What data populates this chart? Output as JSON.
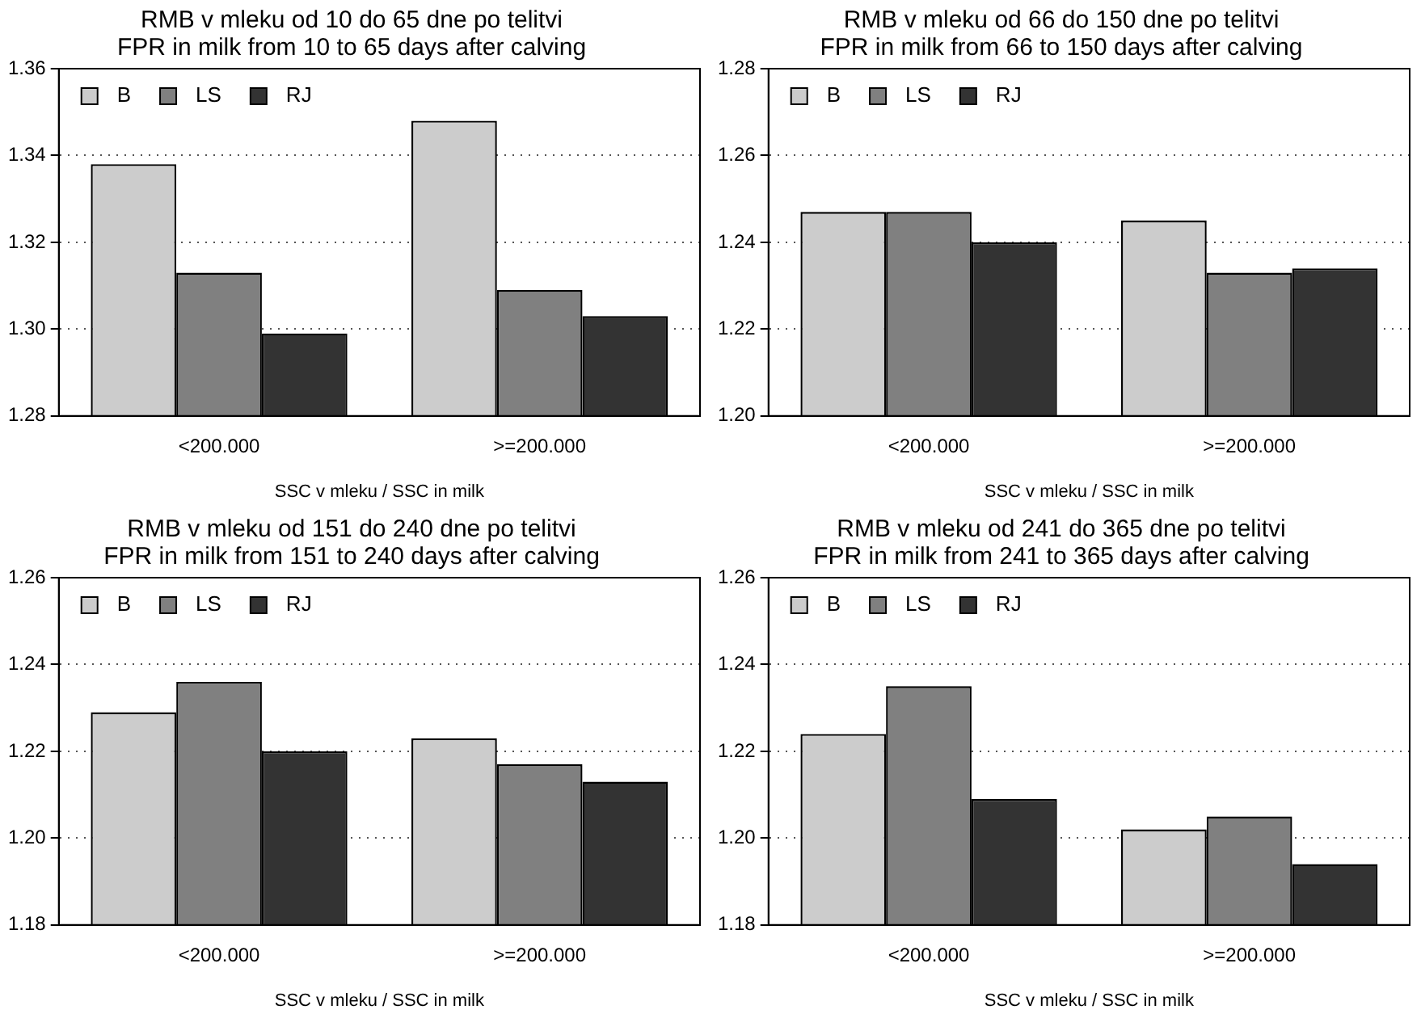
{
  "chart_data": [
    {
      "type": "bar",
      "title": "RMB v mleku od 10 do 65 dne po telitvi",
      "subtitle": "FPR in milk from 10 to 65 days after calving",
      "xlabel": "SSC v mleku / SSC in milk",
      "categories": [
        "<200.000",
        ">=200.000"
      ],
      "series": [
        {
          "name": "B",
          "color": "#cccccc",
          "values": [
            1.338,
            1.348
          ]
        },
        {
          "name": "LS",
          "color": "#808080",
          "values": [
            1.313,
            1.309
          ]
        },
        {
          "name": "RJ",
          "color": "#333333",
          "values": [
            1.299,
            1.303
          ]
        }
      ],
      "ylim": [
        1.28,
        1.36
      ],
      "yticks": [
        {
          "value": 1.28,
          "label": "1.28"
        },
        {
          "value": 1.3,
          "label": "1.30"
        },
        {
          "value": 1.32,
          "label": "1.32"
        },
        {
          "value": 1.34,
          "label": "1.34"
        },
        {
          "value": 1.36,
          "label": "1.36"
        }
      ],
      "grid": "y",
      "legend": "top left"
    },
    {
      "type": "bar",
      "title": "RMB v mleku od 66 do 150 dne po telitvi",
      "subtitle": "FPR in milk from 66 to 150 days after calving",
      "xlabel": "SSC v mleku / SSC in milk",
      "categories": [
        "<200.000",
        ">=200.000"
      ],
      "series": [
        {
          "name": "B",
          "color": "#cccccc",
          "values": [
            1.247,
            1.245
          ]
        },
        {
          "name": "LS",
          "color": "#808080",
          "values": [
            1.247,
            1.233
          ]
        },
        {
          "name": "RJ",
          "color": "#333333",
          "values": [
            1.24,
            1.234
          ]
        }
      ],
      "ylim": [
        1.2,
        1.28
      ],
      "yticks": [
        {
          "value": 1.2,
          "label": "1.20"
        },
        {
          "value": 1.22,
          "label": "1.22"
        },
        {
          "value": 1.24,
          "label": "1.24"
        },
        {
          "value": 1.26,
          "label": "1.26"
        },
        {
          "value": 1.28,
          "label": "1.28"
        }
      ],
      "grid": "y",
      "legend": "top left"
    },
    {
      "type": "bar",
      "title": "RMB v mleku od 151 do 240 dne po telitvi",
      "subtitle": "FPR in milk from 151 to 240 days after calving",
      "xlabel": "SSC v mleku / SSC in milk",
      "categories": [
        "<200.000",
        ">=200.000"
      ],
      "series": [
        {
          "name": "B",
          "color": "#cccccc",
          "values": [
            1.229,
            1.223
          ]
        },
        {
          "name": "LS",
          "color": "#808080",
          "values": [
            1.236,
            1.217
          ]
        },
        {
          "name": "RJ",
          "color": "#333333",
          "values": [
            1.22,
            1.213
          ]
        }
      ],
      "ylim": [
        1.18,
        1.26
      ],
      "yticks": [
        {
          "value": 1.18,
          "label": "1.18"
        },
        {
          "value": 1.2,
          "label": "1.20"
        },
        {
          "value": 1.22,
          "label": "1.22"
        },
        {
          "value": 1.24,
          "label": "1.24"
        },
        {
          "value": 1.26,
          "label": "1.26"
        }
      ],
      "grid": "y",
      "legend": "top left"
    },
    {
      "type": "bar",
      "title": "RMB v mleku od 241 do 365 dne po telitvi",
      "subtitle": "FPR in milk from 241 to 365 days after calving",
      "xlabel": "SSC v mleku / SSC in milk",
      "categories": [
        "<200.000",
        ">=200.000"
      ],
      "series": [
        {
          "name": "B",
          "color": "#cccccc",
          "values": [
            1.224,
            1.202
          ]
        },
        {
          "name": "LS",
          "color": "#808080",
          "values": [
            1.235,
            1.205
          ]
        },
        {
          "name": "RJ",
          "color": "#333333",
          "values": [
            1.209,
            1.194
          ]
        }
      ],
      "ylim": [
        1.18,
        1.26
      ],
      "yticks": [
        {
          "value": 1.18,
          "label": "1.18"
        },
        {
          "value": 1.2,
          "label": "1.20"
        },
        {
          "value": 1.22,
          "label": "1.22"
        },
        {
          "value": 1.24,
          "label": "1.24"
        },
        {
          "value": 1.26,
          "label": "1.26"
        }
      ],
      "grid": "y",
      "legend": "top left"
    }
  ]
}
